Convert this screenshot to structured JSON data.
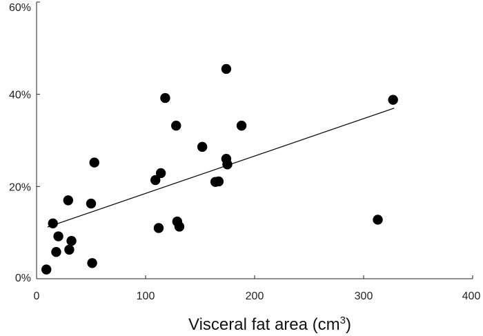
{
  "chart_data": {
    "type": "scatter",
    "title": "",
    "xlabel_main": "Visceral fat area (cm",
    "xlabel_sup": "3",
    "xlabel_end": ")",
    "ylabel": "",
    "xlim": [
      0,
      400
    ],
    "ylim": [
      0,
      60
    ],
    "x_ticks": [
      "0",
      "100",
      "200",
      "300",
      "400"
    ],
    "y_ticks": [
      "0%",
      "20%",
      "40%",
      "60%"
    ],
    "grid": false,
    "trendline": {
      "x": [
        10,
        328
      ],
      "y": [
        11.2,
        37.0
      ]
    },
    "series": [
      {
        "points": [
          {
            "x": 9,
            "y": 2.0
          },
          {
            "x": 15,
            "y": 12.0
          },
          {
            "x": 18,
            "y": 5.8
          },
          {
            "x": 20,
            "y": 9.2
          },
          {
            "x": 29,
            "y": 17.0
          },
          {
            "x": 30,
            "y": 6.3
          },
          {
            "x": 32,
            "y": 8.2
          },
          {
            "x": 50,
            "y": 16.3
          },
          {
            "x": 51,
            "y": 3.4
          },
          {
            "x": 53,
            "y": 25.2
          },
          {
            "x": 109,
            "y": 21.4
          },
          {
            "x": 112,
            "y": 11.0
          },
          {
            "x": 114,
            "y": 22.9
          },
          {
            "x": 118,
            "y": 39.2
          },
          {
            "x": 128,
            "y": 33.2
          },
          {
            "x": 129,
            "y": 12.4
          },
          {
            "x": 131,
            "y": 11.3
          },
          {
            "x": 152,
            "y": 28.6
          },
          {
            "x": 164,
            "y": 21.0
          },
          {
            "x": 167,
            "y": 21.1
          },
          {
            "x": 174,
            "y": 26.0
          },
          {
            "x": 174,
            "y": 45.5
          },
          {
            "x": 175,
            "y": 24.8
          },
          {
            "x": 188,
            "y": 33.2
          },
          {
            "x": 313,
            "y": 12.8
          },
          {
            "x": 327,
            "y": 38.8
          }
        ]
      }
    ]
  }
}
